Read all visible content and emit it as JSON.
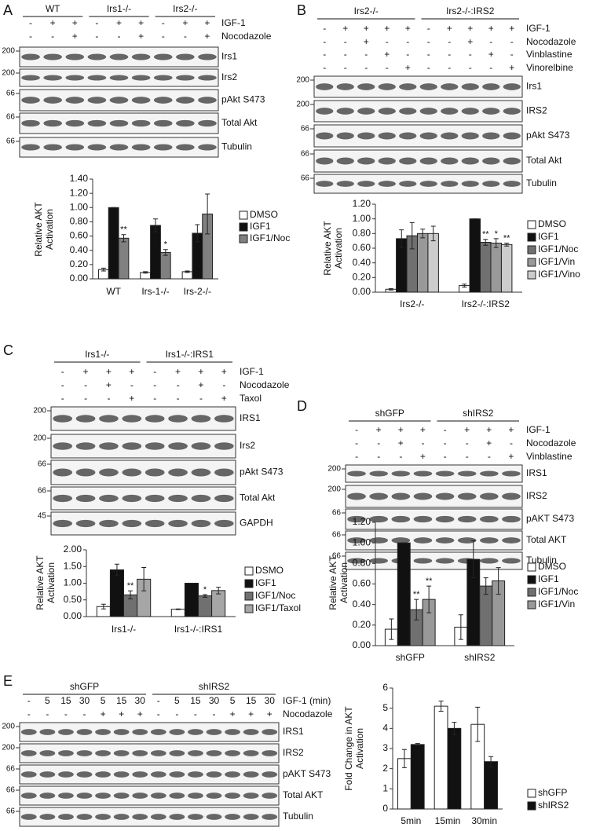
{
  "panels": [
    {
      "label": "A",
      "groups": [
        "WT",
        "Irs1-/-",
        "Irs2-/-"
      ],
      "treatments": [
        {
          "name": "IGF-1",
          "signs": [
            "-",
            "+",
            "+",
            "-",
            "+",
            "+",
            "-",
            "+",
            "+"
          ]
        },
        {
          "name": "Nocodazole",
          "signs": [
            "-",
            "-",
            "+",
            "-",
            "-",
            "+",
            "-",
            "-",
            "+"
          ]
        }
      ],
      "blots": [
        {
          "name": "Irs1",
          "marker": "200"
        },
        {
          "name": "Irs2",
          "marker": "200"
        },
        {
          "name": "pAkt S473",
          "marker": "66"
        },
        {
          "name": "Total Akt",
          "marker": "66"
        },
        {
          "name": "Tubulin",
          "marker": "66"
        }
      ]
    },
    {
      "label": "B",
      "groups": [
        "Irs2-/-",
        "Irs2-/-:IRS2"
      ],
      "treatments": [
        {
          "name": "IGF-1",
          "signs": [
            "-",
            "+",
            "+",
            "+",
            "+",
            "-",
            "+",
            "+",
            "+",
            "+"
          ]
        },
        {
          "name": "Nocodazole",
          "signs": [
            "-",
            "-",
            "+",
            "-",
            "-",
            "-",
            "-",
            "+",
            "-",
            "-"
          ]
        },
        {
          "name": "Vinblastine",
          "signs": [
            "-",
            "-",
            "-",
            "+",
            "-",
            "-",
            "-",
            "-",
            "+",
            "-"
          ]
        },
        {
          "name": "Vinorelbine",
          "signs": [
            "-",
            "-",
            "-",
            "-",
            "+",
            "-",
            "-",
            "-",
            "-",
            "+"
          ]
        }
      ],
      "blots": [
        {
          "name": "Irs1",
          "marker": "200"
        },
        {
          "name": "IRS2",
          "marker": "200"
        },
        {
          "name": "pAkt S473",
          "marker": "66"
        },
        {
          "name": "Total Akt",
          "marker": "66"
        },
        {
          "name": "Tubulin",
          "marker": "66"
        }
      ]
    },
    {
      "label": "C",
      "groups": [
        "Irs1-/-",
        "Irs1-/-:IRS1"
      ],
      "treatments": [
        {
          "name": "IGF-1",
          "signs": [
            "-",
            "+",
            "+",
            "+",
            "-",
            "+",
            "+",
            "+"
          ]
        },
        {
          "name": "Nocodazole",
          "signs": [
            "-",
            "-",
            "+",
            "-",
            "-",
            "-",
            "+",
            "-"
          ]
        },
        {
          "name": "Taxol",
          "signs": [
            "-",
            "-",
            "-",
            "+",
            "-",
            "-",
            "-",
            "+"
          ]
        }
      ],
      "blots": [
        {
          "name": "IRS1",
          "marker": "200"
        },
        {
          "name": "Irs2",
          "marker": "200"
        },
        {
          "name": "pAkt S473",
          "marker": "66"
        },
        {
          "name": "Total Akt",
          "marker": "66"
        },
        {
          "name": "GAPDH",
          "marker": "45"
        }
      ]
    },
    {
      "label": "D",
      "groups": [
        "shGFP",
        "shIRS2"
      ],
      "treatments": [
        {
          "name": "IGF-1",
          "signs": [
            "-",
            "+",
            "+",
            "+",
            "-",
            "+",
            "+",
            "+"
          ]
        },
        {
          "name": "Nocodazole",
          "signs": [
            "-",
            "-",
            "+",
            "-",
            "-",
            "-",
            "+",
            "-"
          ]
        },
        {
          "name": "Vinblastine",
          "signs": [
            "-",
            "-",
            "-",
            "+",
            "-",
            "-",
            "-",
            "+"
          ]
        }
      ],
      "blots": [
        {
          "name": "IRS1",
          "marker": "200"
        },
        {
          "name": "IRS2",
          "marker": "200"
        },
        {
          "name": "pAKT S473",
          "marker": "66"
        },
        {
          "name": "Total AKT",
          "marker": "66"
        },
        {
          "name": "Tubulin",
          "marker": "66"
        }
      ]
    },
    {
      "label": "E",
      "groups": [
        "shGFP",
        "shIRS2"
      ],
      "treatments": [
        {
          "name": "IGF-1 (min)",
          "signs": [
            "-",
            "5",
            "15",
            "30",
            "5",
            "15",
            "30",
            "-",
            "5",
            "15",
            "30",
            "5",
            "15",
            "30"
          ]
        },
        {
          "name": "Nocodazole",
          "signs": [
            "-",
            "-",
            "-",
            "-",
            "+",
            "+",
            "+",
            "-",
            "-",
            "-",
            "-",
            "+",
            "+",
            "+"
          ]
        }
      ],
      "blots": [
        {
          "name": "IRS1",
          "marker": "200"
        },
        {
          "name": "IRS2",
          "marker": "200"
        },
        {
          "name": "pAKT S473",
          "marker": "66"
        },
        {
          "name": "Total AKT",
          "marker": "66"
        },
        {
          "name": "Tubulin",
          "marker": "66"
        }
      ]
    }
  ],
  "chart_data": [
    {
      "type": "bar",
      "ylabel": [
        "Relative AKT",
        "Activation"
      ],
      "categories": [
        "WT",
        "Irs-1-/-",
        "Irs-2-/-"
      ],
      "series": [
        {
          "name": "DMSO",
          "color": "#ffffff",
          "values": [
            0.13,
            0.09,
            0.1
          ],
          "errors": [
            0.02,
            0.01,
            0.01
          ],
          "significance": [
            null,
            null,
            null
          ]
        },
        {
          "name": "IGF1",
          "color": "#111111",
          "values": [
            1.0,
            0.75,
            0.64
          ],
          "errors": [
            0,
            0.09,
            0.12
          ],
          "significance": [
            null,
            null,
            null
          ]
        },
        {
          "name": "IGF1/Noc",
          "color": "#808080",
          "values": [
            0.57,
            0.37,
            0.91
          ],
          "errors": [
            0.05,
            0.04,
            0.28
          ],
          "significance": [
            "**",
            "*",
            null
          ]
        }
      ],
      "ylim": [
        0,
        1.4
      ],
      "yticks": [
        {
          "value": 0,
          "label": "0.00"
        },
        {
          "value": 0.2,
          "label": "0.20"
        },
        {
          "value": 0.4,
          "label": "0.40"
        },
        {
          "value": 0.6,
          "label": "0.60"
        },
        {
          "value": 0.8,
          "label": "0.80"
        },
        {
          "value": 1,
          "label": "1.00"
        },
        {
          "value": 1.2,
          "label": "1.20"
        },
        {
          "value": 1.4,
          "label": "1.40"
        }
      ]
    },
    {
      "type": "bar",
      "ylabel": [
        "Relative AKT",
        "Activation"
      ],
      "categories": [
        "Irs2-/-",
        "Irs2-/-:IRS2"
      ],
      "series": [
        {
          "name": "DMSO",
          "color": "#ffffff",
          "values": [
            0.04,
            0.09
          ],
          "errors": [
            0.01,
            0.02
          ],
          "significance": [
            null,
            null
          ]
        },
        {
          "name": "IGF1",
          "color": "#111111",
          "values": [
            0.73,
            1.0
          ],
          "errors": [
            0.12,
            0
          ],
          "significance": [
            null,
            null
          ]
        },
        {
          "name": "IGF1/Noc",
          "color": "#707070",
          "values": [
            0.77,
            0.68
          ],
          "errors": [
            0.18,
            0.04
          ],
          "significance": [
            null,
            "**"
          ]
        },
        {
          "name": "IGF1/Vin",
          "color": "#999999",
          "values": [
            0.8,
            0.67
          ],
          "errors": [
            0.06,
            0.06
          ],
          "significance": [
            null,
            "*"
          ]
        },
        {
          "name": "IGF1/Vino",
          "color": "#cccccc",
          "values": [
            0.8,
            0.65
          ],
          "errors": [
            0.1,
            0.02
          ],
          "significance": [
            null,
            "**"
          ]
        }
      ],
      "ylim": [
        0,
        1.2
      ],
      "yticks": [
        {
          "value": 0,
          "label": "0.00"
        },
        {
          "value": 0.2,
          "label": "0.20"
        },
        {
          "value": 0.4,
          "label": "0.40"
        },
        {
          "value": 0.6,
          "label": "0.60"
        },
        {
          "value": 0.8,
          "label": "0.80"
        },
        {
          "value": 1,
          "label": "1.00"
        },
        {
          "value": 1.2,
          "label": "1.20"
        }
      ]
    },
    {
      "type": "bar",
      "ylabel": [
        "Relative AKT",
        "Activation"
      ],
      "categories": [
        "Irs1-/-",
        "Irs1-/-:IRS1"
      ],
      "series": [
        {
          "name": "DSMO",
          "color": "#ffffff",
          "values": [
            0.3,
            0.22
          ],
          "errors": [
            0.07,
            0.01
          ],
          "significance": [
            null,
            null
          ]
        },
        {
          "name": "IGF1",
          "color": "#111111",
          "values": [
            1.4,
            1.0
          ],
          "errors": [
            0.17,
            0
          ],
          "significance": [
            null,
            null
          ]
        },
        {
          "name": "IGF1/Noc",
          "color": "#707070",
          "values": [
            0.65,
            0.62
          ],
          "errors": [
            0.12,
            0.04
          ],
          "significance": [
            "**",
            "*"
          ]
        },
        {
          "name": "IGF1/Taxol",
          "color": "#a6a6a6",
          "values": [
            1.12,
            0.78
          ],
          "errors": [
            0.35,
            0.1
          ],
          "significance": [
            null,
            null
          ]
        }
      ],
      "ylim": [
        0,
        2
      ],
      "yticks": [
        {
          "value": 0,
          "label": "0.00"
        },
        {
          "value": 0.5,
          "label": "0.50"
        },
        {
          "value": 1,
          "label": "1.00"
        },
        {
          "value": 1.5,
          "label": "1.50"
        },
        {
          "value": 2,
          "label": "2.00"
        }
      ]
    },
    {
      "type": "bar",
      "ylabel": [
        "Relative AKT",
        "Activation"
      ],
      "categories": [
        "shGFP",
        "shIRS2"
      ],
      "series": [
        {
          "name": "DMSO",
          "color": "#ffffff",
          "values": [
            0.16,
            0.18
          ],
          "errors": [
            0.1,
            0.12
          ],
          "significance": [
            null,
            null
          ]
        },
        {
          "name": "IGF1",
          "color": "#111111",
          "values": [
            1.0,
            0.84
          ],
          "errors": [
            0,
            0.18
          ],
          "significance": [
            null,
            null
          ]
        },
        {
          "name": "IGF1/Noc",
          "color": "#707070",
          "values": [
            0.35,
            0.58
          ],
          "errors": [
            0.1,
            0.08
          ],
          "significance": [
            "**",
            null
          ]
        },
        {
          "name": "IGF1/Vin",
          "color": "#999999",
          "values": [
            0.45,
            0.63
          ],
          "errors": [
            0.13,
            0.13
          ],
          "significance": [
            "**",
            null
          ]
        }
      ],
      "ylim": [
        0,
        1.2
      ],
      "yticks": [
        {
          "value": 0,
          "label": "0.00"
        },
        {
          "value": 0.2,
          "label": "0.20"
        },
        {
          "value": 0.4,
          "label": "0.40"
        },
        {
          "value": 0.6,
          "label": "0.60"
        },
        {
          "value": 0.8,
          "label": "0.80"
        },
        {
          "value": 1,
          "label": "1.00"
        },
        {
          "value": 1.2,
          "label": "1.20"
        }
      ]
    },
    {
      "type": "bar",
      "ylabel": [
        "Fold Change in AKT",
        "Activation"
      ],
      "categories": [
        "5min",
        "15min",
        "30min"
      ],
      "series": [
        {
          "name": "shGFP",
          "color": "#ffffff",
          "values": [
            2.5,
            5.1,
            4.2
          ],
          "errors": [
            0.45,
            0.25,
            0.85
          ],
          "significance": [
            null,
            null,
            null
          ]
        },
        {
          "name": "shIRS2",
          "color": "#111111",
          "values": [
            3.2,
            4.0,
            2.35
          ],
          "errors": [
            0.05,
            0.3,
            0.25
          ],
          "significance": [
            null,
            null,
            null
          ]
        }
      ],
      "ylim": [
        0,
        6
      ],
      "yticks": [
        0,
        1,
        2,
        3,
        4,
        5,
        6
      ]
    }
  ]
}
